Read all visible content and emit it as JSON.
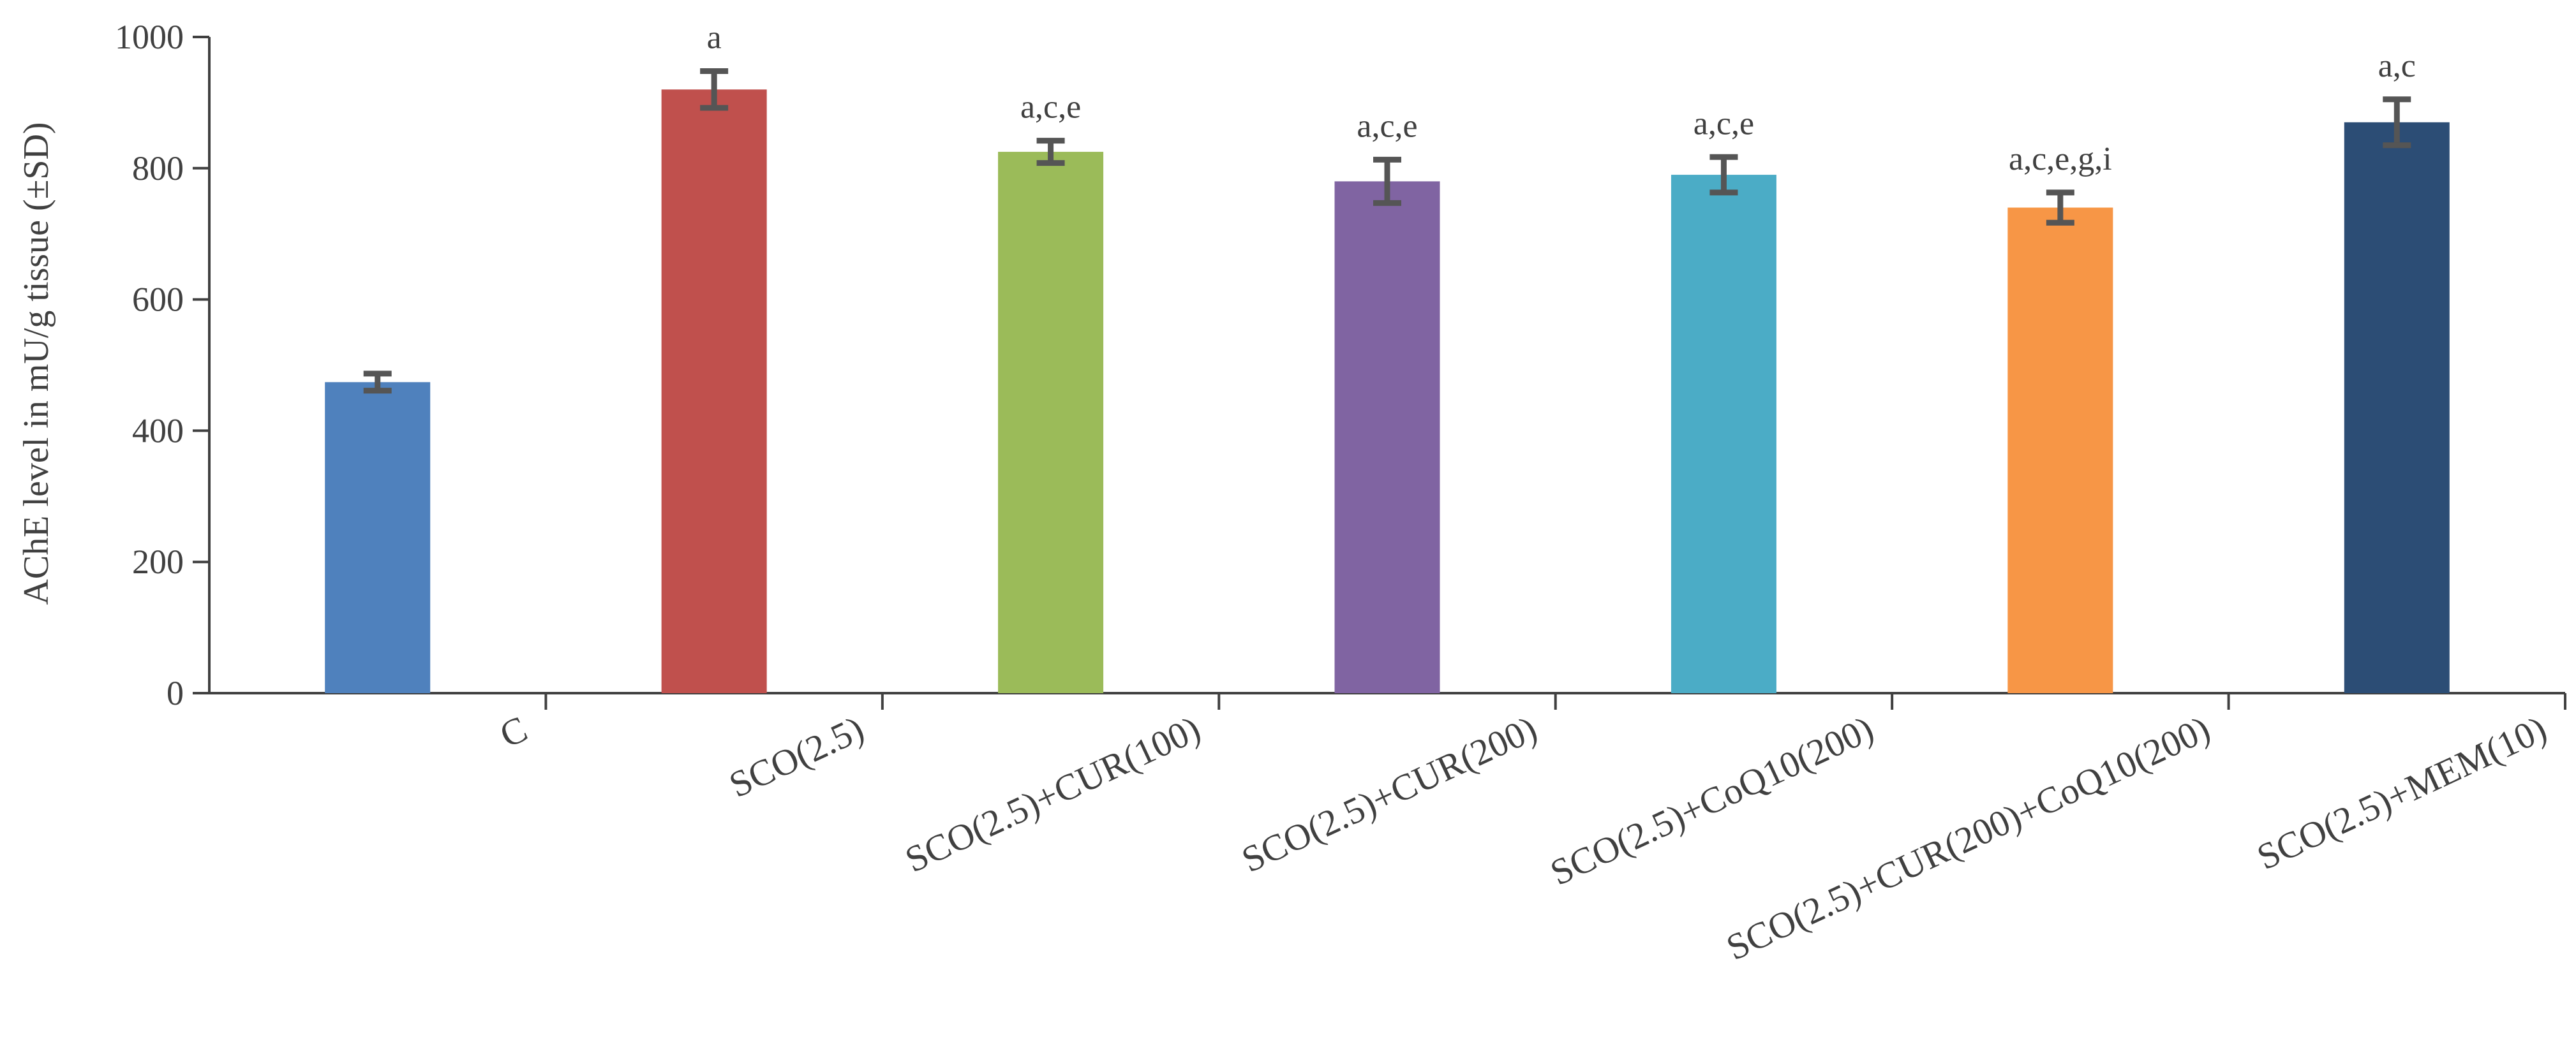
{
  "chart_data": {
    "type": "bar",
    "title": "",
    "xlabel": "",
    "ylabel": "AChE level in mU/g tissue (±SD)",
    "ylim": [
      0,
      1000
    ],
    "yticks": [
      0,
      200,
      400,
      600,
      800,
      1000
    ],
    "grid": false,
    "legend": "none",
    "categories": [
      "C",
      "SCO(2.5)",
      "SCO(2.5)+CUR(100)",
      "SCO(2.5)+CUR(200)",
      "SCO(2.5)+CoQ10(200)",
      "SCO(2.5)+CUR(200)+CoQ10(200)",
      "SCO(2.5)+MEM(10)"
    ],
    "values": [
      474,
      920,
      825,
      780,
      790,
      740,
      870
    ],
    "errors": [
      13,
      28,
      17,
      33,
      27,
      23,
      35
    ],
    "annotations": [
      "",
      "a",
      "a,c,e",
      "a,c,e",
      "a,c,e",
      "a,c,e,g,i",
      "a,c"
    ],
    "colors": [
      "#4f81bd",
      "#c0504d",
      "#9bbb59",
      "#8064a2",
      "#4bacc6",
      "#f79646",
      "#2c4d75"
    ],
    "error_bar_color": "#555555",
    "axis_color": "#404040"
  }
}
